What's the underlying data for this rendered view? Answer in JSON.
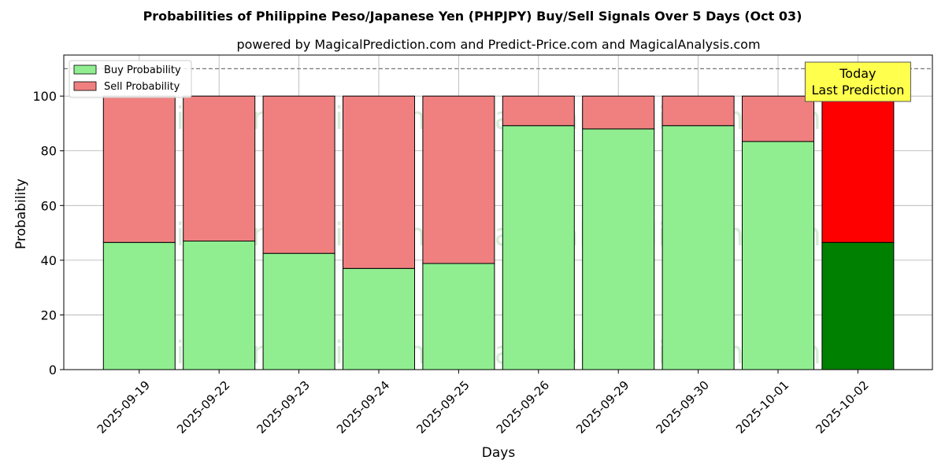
{
  "chart_data": {
    "type": "bar",
    "stacked": true,
    "title": "Probabilities of Philippine Peso/Japanese Yen (PHPJPY) Buy/Sell Signals Over 5 Days (Oct 03)",
    "subtitle": "powered by MagicalPrediction.com and Predict-Price.com and MagicalAnalysis.com",
    "xlabel": "Days",
    "ylabel": "Probability",
    "ylim": [
      0,
      115
    ],
    "yticks": [
      0,
      20,
      40,
      60,
      80,
      100
    ],
    "reference_line": 110,
    "grid": true,
    "legend_position": "top-left",
    "categories": [
      "2025-09-19",
      "2025-09-22",
      "2025-09-23",
      "2025-09-24",
      "2025-09-25",
      "2025-09-26",
      "2025-09-29",
      "2025-09-30",
      "2025-10-01",
      "2025-10-02"
    ],
    "series": [
      {
        "name": "Buy Probability",
        "color": "#90ee90",
        "highlight_color": "#008000",
        "values": [
          46.5,
          47.0,
          42.5,
          37.0,
          38.8,
          89.2,
          88.0,
          89.2,
          83.4,
          46.5
        ]
      },
      {
        "name": "Sell Probability",
        "color": "#f08080",
        "highlight_color": "#ff0000",
        "values": [
          53.5,
          53.0,
          57.5,
          63.0,
          61.2,
          10.8,
          12.0,
          10.8,
          16.6,
          53.5
        ]
      }
    ],
    "highlight_index": 9,
    "annotation": {
      "line1": "Today",
      "line2": "Last Prediction",
      "color": "#ffff4d"
    },
    "watermarks": [
      "MagicalAnalysis.com",
      "MagicalPrediction.com"
    ]
  }
}
